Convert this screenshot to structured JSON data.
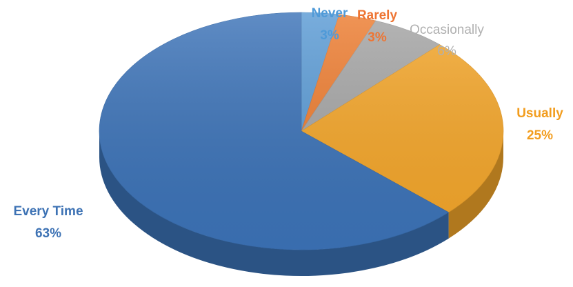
{
  "chart_data": {
    "type": "pie",
    "categories": [
      "Never",
      "Rarely",
      "Occasionally",
      "Usually",
      "Every Time"
    ],
    "values": [
      3,
      3,
      6,
      25,
      63
    ],
    "value_labels": [
      "3%",
      "3%",
      "6%",
      "25%",
      "63%"
    ],
    "colors": [
      "#5b9bd5",
      "#ed7d31",
      "#a5a5a5",
      "#f4a62a",
      "#3c73b8"
    ],
    "label_colors": [
      "#4f9ad8",
      "#ee7533",
      "#b0b0b0",
      "#f29d1e",
      "#3d72b4"
    ],
    "style": "3d",
    "legend": "none"
  }
}
